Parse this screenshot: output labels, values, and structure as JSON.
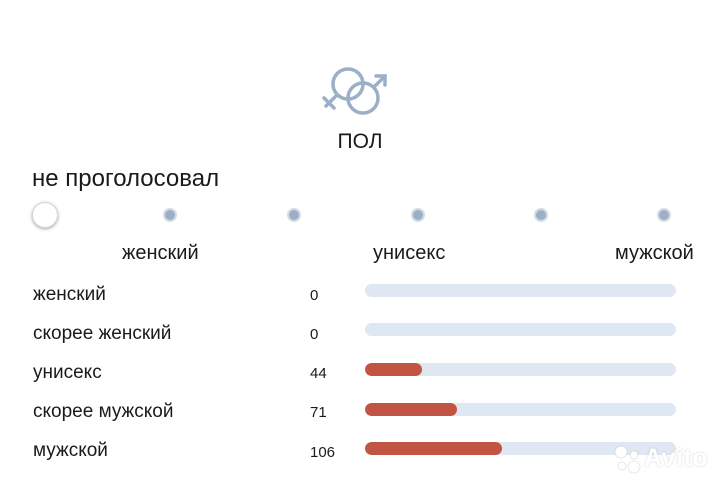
{
  "section": {
    "icon": "gender-symbols-icon",
    "title": "ПОЛ"
  },
  "vote_status": "не проголосовал",
  "scale": {
    "selected_index": 0,
    "point_count": 6,
    "labels": {
      "left": "женский",
      "middle": "унисекс",
      "right": "мужской"
    }
  },
  "results": {
    "max_value": 240,
    "rows": [
      {
        "label": "женский",
        "count": "0",
        "value": 0
      },
      {
        "label": "скорее женский",
        "count": "0",
        "value": 0
      },
      {
        "label": "унисекс",
        "count": "44",
        "value": 44
      },
      {
        "label": "скорее мужской",
        "count": "71",
        "value": 71
      },
      {
        "label": "мужской",
        "count": "106",
        "value": 106
      }
    ]
  },
  "colors": {
    "bar_fill": "#c25443",
    "bar_track": "#dfe7f2",
    "scale_dot": "#9bb0c6",
    "icon": "#9bb0c6"
  },
  "watermark": {
    "icon": "avito-logo-icon",
    "text": "Avito"
  }
}
